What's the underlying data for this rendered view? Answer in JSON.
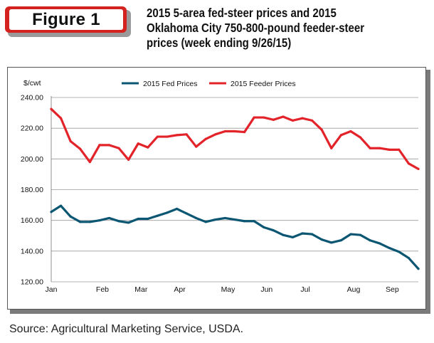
{
  "figure_label": "Figure 1",
  "title_lines": [
    "2015 5-area fed-steer prices and 2015",
    "Oklahoma City 750-800-pound feeder-steer",
    "prices (week ending 9/26/15)"
  ],
  "source": "Source: Agricultural Marketing Service, USDA.",
  "colors": {
    "badge_red": "#d4221e",
    "fed": "#0b5672",
    "feeder": "#e3232a"
  },
  "chart_data": {
    "type": "line",
    "title": "2015 5-area fed-steer prices and 2015 Oklahoma City 750-800-pound feeder-steer prices (week ending 9/26/15)",
    "ylabel": "$/cwt",
    "xlabel": "",
    "ylim": [
      120,
      240
    ],
    "yticks": [
      "240.00",
      "220.00",
      "200.00",
      "180.00",
      "160.00",
      "140.00",
      "120.00"
    ],
    "ytick_values": [
      240,
      220,
      200,
      180,
      160,
      140,
      120
    ],
    "x_labels": [
      "Jan",
      "Feb",
      "Mar",
      "Apr",
      "May",
      "Jun",
      "Jul",
      "Aug",
      "Sep"
    ],
    "x_label_weeks": [
      0,
      5.3,
      9.3,
      13.3,
      18.3,
      22.3,
      26.3,
      31.3,
      35.3
    ],
    "x_week_range": [
      0,
      38
    ],
    "grid": true,
    "legend_position": "top",
    "series": [
      {
        "name": "2015 Fed Prices",
        "color": "#0b5672",
        "values": [
          165.5,
          169.5,
          162.5,
          159,
          159,
          160,
          161.5,
          159.5,
          158.5,
          161,
          161,
          163,
          165,
          167.5,
          164.5,
          161.5,
          159,
          160.5,
          161.5,
          160.5,
          159.5,
          159.5,
          155.5,
          153.5,
          150.5,
          149,
          151.5,
          151,
          147.5,
          145.5,
          147,
          151,
          150.5,
          147,
          145,
          142,
          139.5,
          135.5,
          128.5
        ]
      },
      {
        "name": "2015 Feeder Prices",
        "color": "#e3232a",
        "values": [
          232.5,
          226.5,
          211.5,
          206.5,
          198,
          209,
          209,
          207,
          199.5,
          210,
          207.5,
          214.5,
          214.5,
          215.5,
          216,
          208,
          213,
          216,
          218,
          218,
          217.5,
          227,
          227,
          225.5,
          227.5,
          225,
          226.5,
          225,
          219,
          207,
          215.5,
          218,
          214,
          207,
          207,
          206,
          206,
          197,
          193.5
        ]
      }
    ]
  }
}
